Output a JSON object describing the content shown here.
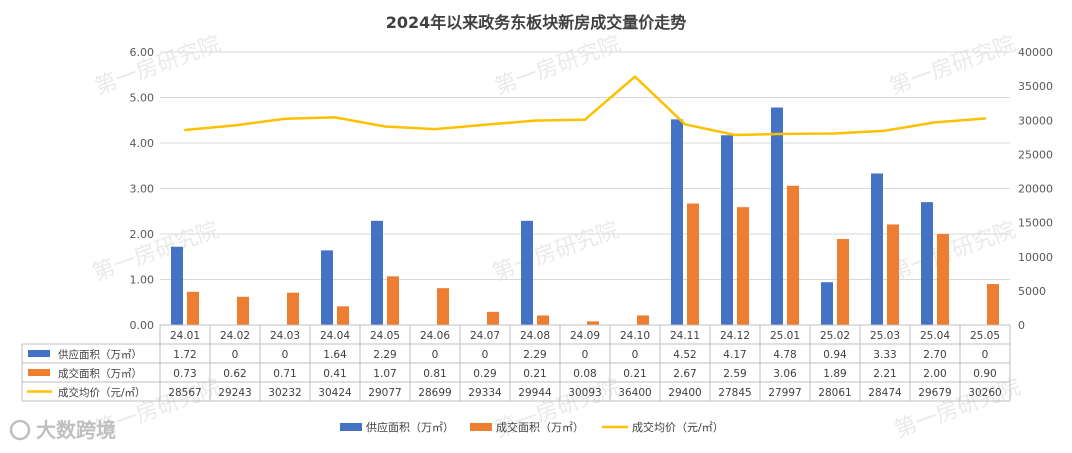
{
  "chart_data": {
    "type": "bar",
    "title": "2024年以来政务东板块新房成交量价走势",
    "categories": [
      "24.01",
      "24.02",
      "24.03",
      "24.04",
      "24.05",
      "24.06",
      "24.07",
      "24.08",
      "24.09",
      "24.10",
      "24.11",
      "24.12",
      "25.01",
      "25.02",
      "25.03",
      "25.04",
      "25.05"
    ],
    "y_left": {
      "ylim": [
        0,
        6
      ],
      "ticks": [
        "0.00",
        "1.00",
        "2.00",
        "3.00",
        "4.00",
        "5.00",
        "6.00"
      ]
    },
    "y_right": {
      "ylim": [
        0,
        40000
      ],
      "ticks": [
        "0",
        "5000",
        "10000",
        "15000",
        "20000",
        "25000",
        "30000",
        "35000",
        "40000"
      ]
    },
    "series": [
      {
        "name": "供应面积（万㎡）",
        "type": "bar",
        "axis": "left",
        "color": "#4472c4",
        "values": [
          1.72,
          0,
          0,
          1.64,
          2.29,
          0,
          0,
          2.29,
          0,
          0,
          4.52,
          4.17,
          4.78,
          0.94,
          3.33,
          2.7,
          0
        ],
        "labels": [
          "1.72",
          "0",
          "0",
          "1.64",
          "2.29",
          "0",
          "0",
          "2.29",
          "0",
          "0",
          "4.52",
          "4.17",
          "4.78",
          "0.94",
          "3.33",
          "2.70",
          "0"
        ]
      },
      {
        "name": "成交面积（万㎡）",
        "type": "bar",
        "axis": "left",
        "color": "#ed7d31",
        "values": [
          0.73,
          0.62,
          0.71,
          0.41,
          1.07,
          0.81,
          0.29,
          0.21,
          0.08,
          0.21,
          2.67,
          2.59,
          3.06,
          1.89,
          2.21,
          2.0,
          0.9
        ],
        "labels": [
          "0.73",
          "0.62",
          "0.71",
          "0.41",
          "1.07",
          "0.81",
          "0.29",
          "0.21",
          "0.08",
          "0.21",
          "2.67",
          "2.59",
          "3.06",
          "1.89",
          "2.21",
          "2.00",
          "0.90"
        ]
      },
      {
        "name": "成交均价（元/㎡）",
        "type": "line",
        "axis": "right",
        "color": "#ffc000",
        "values": [
          28567,
          29243,
          30232,
          30424,
          29077,
          28699,
          29334,
          29944,
          30093,
          36400,
          29400,
          27845,
          27997,
          28061,
          28474,
          29679,
          30260
        ],
        "labels": [
          "28567",
          "29243",
          "30232",
          "30424",
          "29077",
          "28699",
          "29334",
          "29944",
          "30093",
          "36400",
          "29400",
          "27845",
          "27997",
          "28061",
          "28474",
          "29679",
          "30260"
        ]
      }
    ],
    "legend": {
      "position": "bottom",
      "entries": [
        "供应面积（万㎡）",
        "成交面积（万㎡）",
        "成交均价（元/㎡）"
      ]
    },
    "grid": true,
    "data_table": true
  },
  "watermark": "第一房研究院",
  "logo": "大数跨境"
}
